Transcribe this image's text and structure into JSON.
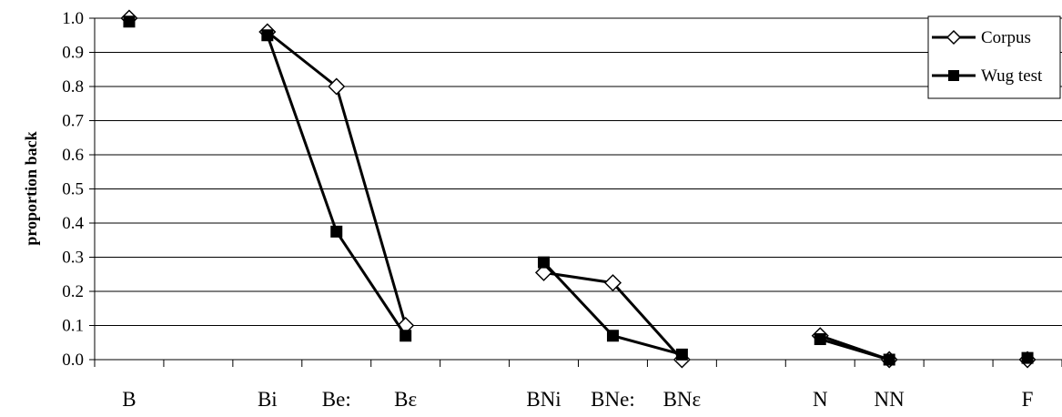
{
  "chart_data": {
    "type": "line",
    "title": "",
    "xlabel": "",
    "ylabel": "proportion back",
    "ylim": [
      0,
      1
    ],
    "y_ticks": [
      "0.0",
      "0.1",
      "0.2",
      "0.3",
      "0.4",
      "0.5",
      "0.6",
      "0.7",
      "0.8",
      "0.9",
      "1.0"
    ],
    "grid": true,
    "legend_position": "top-right",
    "categories": [
      "B",
      "",
      "Bi",
      "Be:",
      "Bɛ",
      "",
      "BNi",
      "BNe:",
      "BNɛ",
      "",
      "N",
      "NN",
      "",
      "F"
    ],
    "series": [
      {
        "name": "Corpus",
        "marker": "open-diamond",
        "segments": [
          [
            0,
            0
          ],
          [
            2,
            4
          ],
          [
            6,
            8
          ],
          [
            10,
            11
          ],
          [
            13,
            13
          ]
        ],
        "values": [
          1.0,
          null,
          0.96,
          0.8,
          0.1,
          null,
          0.255,
          0.225,
          0.0,
          null,
          0.07,
          0.0,
          null,
          0.0
        ]
      },
      {
        "name": "Wug test",
        "marker": "filled-square",
        "segments": [
          [
            0,
            0
          ],
          [
            2,
            4
          ],
          [
            6,
            8
          ],
          [
            10,
            11
          ],
          [
            13,
            13
          ]
        ],
        "values": [
          0.99,
          null,
          0.95,
          0.375,
          0.07,
          null,
          0.285,
          0.07,
          0.015,
          null,
          0.06,
          0.0,
          null,
          0.005
        ]
      }
    ]
  }
}
